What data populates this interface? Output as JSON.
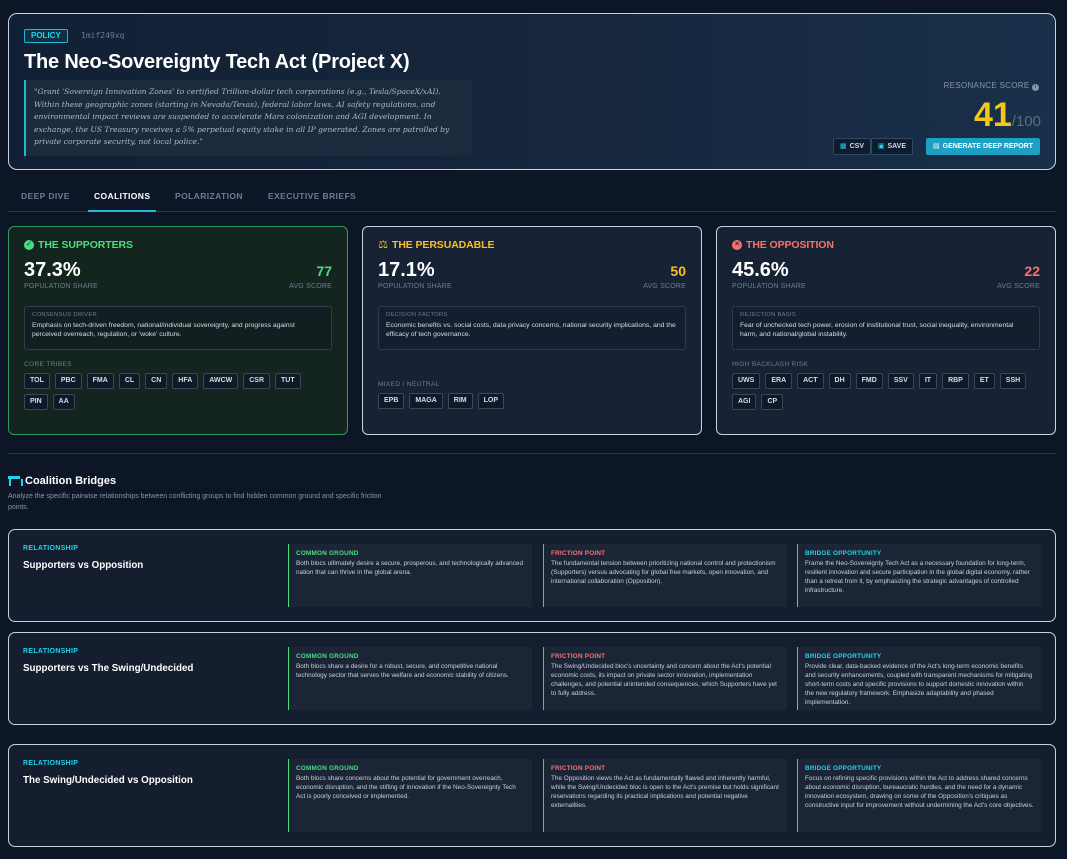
{
  "header": {
    "badge": "POLICY",
    "id": "1mif249xq",
    "title": "The Neo-Sovereignty Tech Act (Project X)",
    "quote": "\"Grant 'Sovereign Innovation Zones' to certified Trillion-dollar tech corporations (e.g., Tesla/SpaceX/xAI). Within these geographic zones (starting in Nevada/Texas), federal labor laws, AI safety regulations, and environmental impact reviews are suspended to accelerate Mars colonization and AGI development. In exchange, the US Treasury receives a 5% perpetual equity stake in all IP generated. Zones are patrolled by private corporate security, not local police.\"",
    "resonance_label": "RESONANCE SCORE",
    "score": "41",
    "score_max": "/100",
    "buttons": {
      "csv": "CSV",
      "save": "SAVE",
      "report": "GENERATE DEEP REPORT"
    }
  },
  "tabs": [
    "DEEP DIVE",
    "COALITIONS",
    "POLARIZATION",
    "EXECUTIVE BRIEFS"
  ],
  "active_tab": "COALITIONS",
  "coalitions": {
    "supporters": {
      "title": "THE SUPPORTERS",
      "pct": "37.3%",
      "pct_label": "POPULATION SHARE",
      "avg": "77",
      "avg_label": "AVG SCORE",
      "box_label": "CONSENSUS DRIVER",
      "box_text": "Emphasis on tech-driven freedom, national/individual sovereignty, and progress against perceived overreach, regulation, or 'woke' culture.",
      "tags_label": "CORE TRIBES",
      "tags": [
        "TOL",
        "PBC",
        "FMA",
        "CL",
        "CN",
        "HFA",
        "AWCW",
        "CSR",
        "TUT",
        "PIN",
        "AA"
      ]
    },
    "persuadable": {
      "title": "THE PERSUADABLE",
      "pct": "17.1%",
      "pct_label": "POPULATION SHARE",
      "avg": "50",
      "avg_label": "AVG SCORE",
      "box_label": "DECISION FACTORS",
      "box_text": "Economic benefits vs. social costs, data privacy concerns, national security implications, and the efficacy of tech governance.",
      "tags_label": "MIXED / NEUTRAL",
      "tags": [
        "EPB",
        "MAGA",
        "RIM",
        "LOP"
      ]
    },
    "opposition": {
      "title": "THE OPPOSITION",
      "pct": "45.6%",
      "pct_label": "POPULATION SHARE",
      "avg": "22",
      "avg_label": "AVG SCORE",
      "box_label": "REJECTION BASIS",
      "box_text": "Fear of unchecked tech power, erosion of institutional trust, social inequality, environmental harm, and national/global instability.",
      "tags_label": "HIGH BACKLASH RISK",
      "tags": [
        "UWS",
        "ERA",
        "ACT",
        "DH",
        "FMD",
        "SSV",
        "IT",
        "RBP",
        "ET",
        "SSH",
        "AGI",
        "CP"
      ]
    }
  },
  "bridges": {
    "title": "Coalition Bridges",
    "subtitle": "Analyze the specific pairwise relationships between conflicting groups to find hidden common ground and specific friction points.",
    "rel_label": "RELATIONSHIP",
    "common_label": "COMMON GROUND",
    "friction_label": "FRICTION POINT",
    "bridge_label": "BRIDGE OPPORTUNITY",
    "items": [
      {
        "name": "Supporters vs Opposition",
        "common": "Both blocs ultimately desire a secure, prosperous, and technologically advanced nation that can thrive in the global arena.",
        "friction": "The fundamental tension between prioritizing national control and protectionism (Supporters) versus advocating for global free markets, open innovation, and international collaboration (Opposition).",
        "bridge": "Frame the Neo-Sovereignty Tech Act as a necessary foundation for long-term, resilient innovation and secure participation in the global digital economy, rather than a retreat from it, by emphasizing the strategic advantages of controlled infrastructure."
      },
      {
        "name": "Supporters vs The Swing/Undecided",
        "common": "Both blocs share a desire for a robust, secure, and competitive national technology sector that serves the welfare and economic stability of citizens.",
        "friction": "The Swing/Undecided bloc's uncertainty and concern about the Act's potential economic costs, its impact on private sector innovation, implementation challenges, and potential unintended consequences, which Supporters have yet to fully address.",
        "bridge": "Provide clear, data-backed evidence of the Act's long-term economic benefits and security enhancements, coupled with transparent mechanisms for mitigating short-term costs and specific provisions to support domestic innovation within the new regulatory framework. Emphasize adaptability and phased implementation."
      },
      {
        "name": "The Swing/Undecided vs Opposition",
        "common": "Both blocs share concerns about the potential for government overreach, economic disruption, and the stifling of innovation if the Neo-Sovereignty Tech Act is poorly conceived or implemented.",
        "friction": "The Opposition views the Act as fundamentally flawed and inherently harmful, while the Swing/Undecided bloc is open to the Act's premise but holds significant reservations regarding its practical implications and potential negative externalities.",
        "bridge": "Focus on refining specific provisions within the Act to address shared concerns about economic disruption, bureaucratic hurdles, and the need for a dynamic innovation ecosystem, drawing on some of the Opposition's critiques as constructive input for improvement without undermining the Act's core objectives."
      }
    ]
  },
  "colors": {
    "accent": "#22d3ee",
    "support": "#4ade80",
    "persuadable": "#fbbf24",
    "opposition": "#f87171",
    "score": "#f5c518"
  }
}
